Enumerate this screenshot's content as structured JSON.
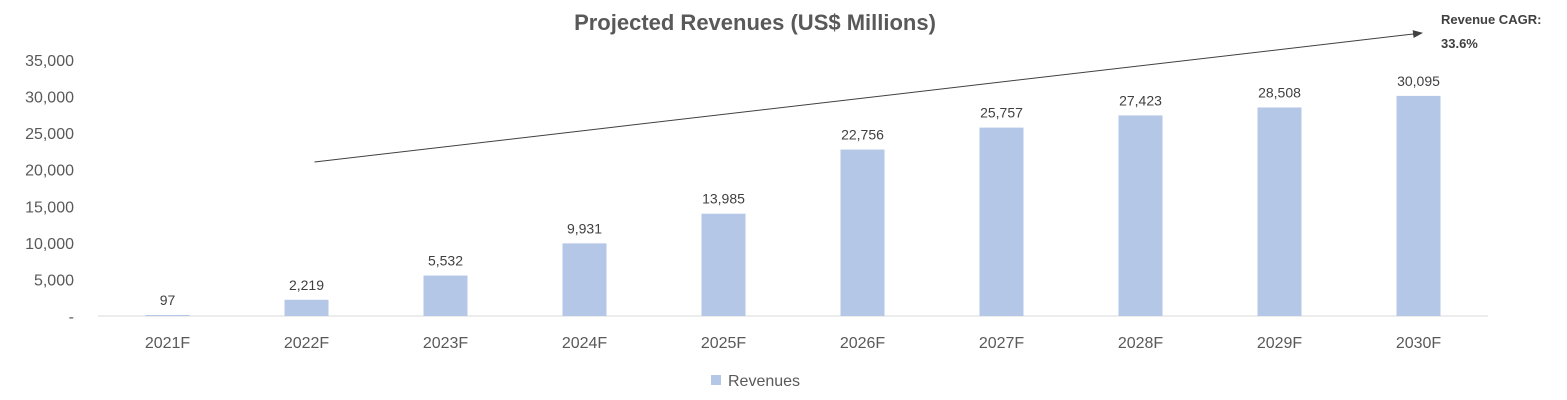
{
  "chart_data": {
    "type": "bar",
    "title": "Projected Revenues (US$ Millions)",
    "xlabel": "",
    "ylabel": "",
    "categories": [
      "2021F",
      "2022F",
      "2023F",
      "2024F",
      "2025F",
      "2026F",
      "2027F",
      "2028F",
      "2029F",
      "2030F"
    ],
    "series": [
      {
        "name": "Revenues",
        "values": [
          97,
          2219,
          5532,
          9931,
          13985,
          22756,
          25757,
          27423,
          28508,
          30095
        ],
        "labels": [
          "97",
          "2,219",
          "5,532",
          "9,931",
          "13,985",
          "22,756",
          "25,757",
          "27,423",
          "28,508",
          "30,095"
        ],
        "color": "#b4c7e7"
      }
    ],
    "ylim": [
      0,
      35000
    ],
    "yticks": [
      0,
      5000,
      10000,
      15000,
      20000,
      25000,
      30000,
      35000
    ],
    "ytick_labels": [
      "-",
      "5,000",
      "10,000",
      "15,000",
      "20,000",
      "25,000",
      "30,000",
      "35,000"
    ],
    "grid": false,
    "legend": "bottom-center",
    "annotation": {
      "line1": "Revenue CAGR:",
      "line2": "33.6%",
      "arrow_from_category": "2022F",
      "arrow_to": "top-right"
    }
  }
}
